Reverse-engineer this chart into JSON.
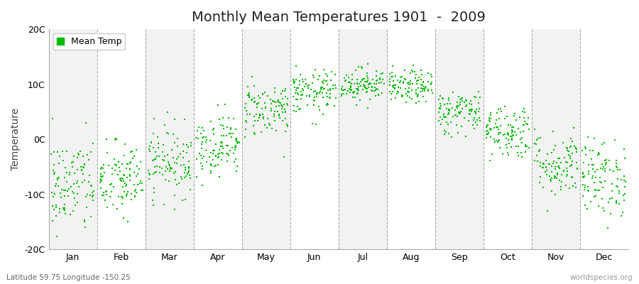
{
  "title": "Monthly Mean Temperatures 1901  -  2009",
  "ylabel": "Temperature",
  "subtitle": "Latitude 59.75 Longitude -150.25",
  "watermark": "worldspecies.org",
  "dot_color": "#00BB00",
  "bg_color": "#FFFFFF",
  "plot_bg_color": "#F2F2F2",
  "alt_band_color": "#FFFFFF",
  "ylim": [
    -20,
    20
  ],
  "yticks": [
    -20,
    -10,
    0,
    10,
    20
  ],
  "ytick_labels": [
    "-20C",
    "-10C",
    "0C",
    "10C",
    "20C"
  ],
  "months": [
    "Jan",
    "Feb",
    "Mar",
    "Apr",
    "May",
    "Jun",
    "Jul",
    "Aug",
    "Sep",
    "Oct",
    "Nov",
    "Dec"
  ],
  "monthly_means": [
    -8.5,
    -7.5,
    -4.0,
    -1.0,
    5.5,
    8.5,
    10.0,
    9.5,
    5.0,
    1.5,
    -4.5,
    -7.0
  ],
  "monthly_stds": [
    4.5,
    3.5,
    3.2,
    2.8,
    2.5,
    2.0,
    1.5,
    1.5,
    2.0,
    2.5,
    3.0,
    3.5
  ],
  "n_years": 109,
  "seed": 42,
  "dot_size": 4,
  "title_fontsize": 14,
  "axis_fontsize": 10,
  "tick_fontsize": 9,
  "legend_fontsize": 9
}
